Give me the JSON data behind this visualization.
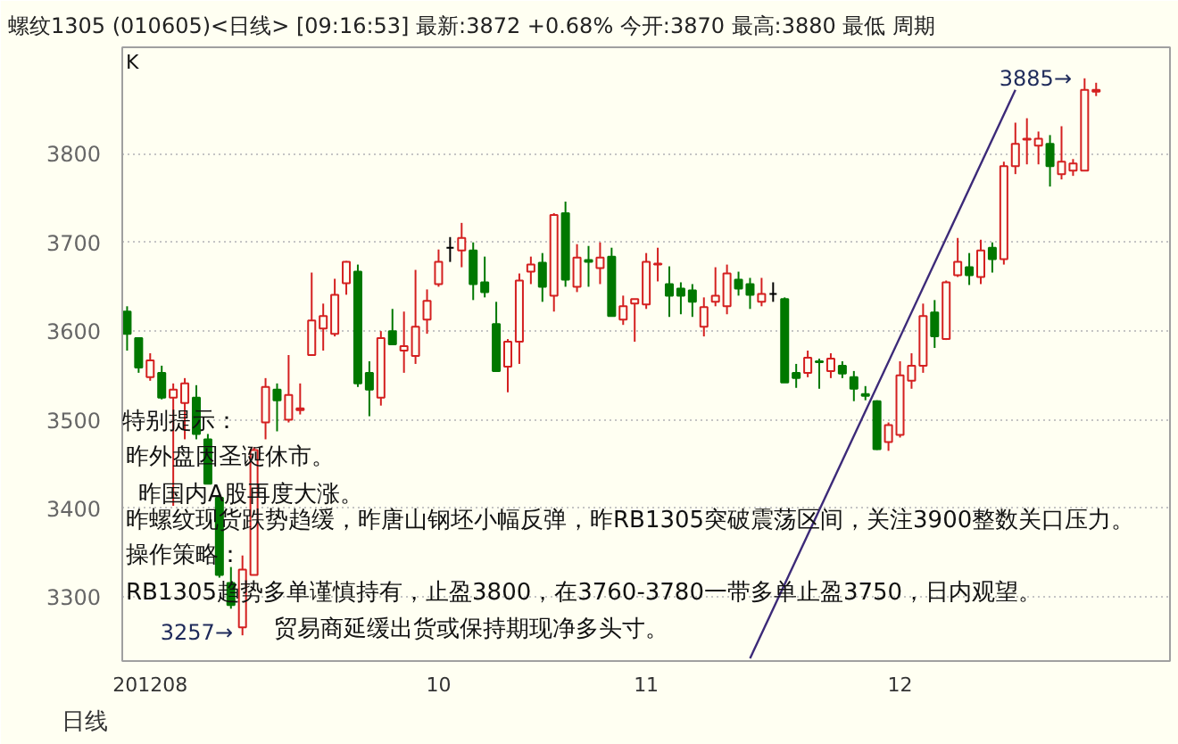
{
  "chart_data": {
    "type": "candlestick",
    "title": "螺纹1305 (010605)<日线>",
    "subtitle": "[09:16:53] 最新:3872 +0.68% 今开:3870 最高:3880 最低 周期",
    "categories": [
      null,
      null,
      "201208",
      null,
      null,
      null,
      null,
      null,
      null,
      null,
      null,
      null,
      null,
      null,
      null,
      null,
      null,
      null,
      null,
      null,
      null,
      null,
      null,
      null,
      null,
      null,
      null,
      "10",
      null,
      null,
      null,
      null,
      null,
      null,
      null,
      null,
      null,
      null,
      null,
      null,
      null,
      null,
      null,
      null,
      null,
      "11",
      null,
      null,
      null,
      null,
      null,
      null,
      null,
      null,
      null,
      null,
      null,
      null,
      null,
      null,
      null,
      null,
      null,
      null,
      null,
      null,
      null,
      "12",
      null,
      null,
      null,
      null,
      null,
      null,
      null,
      null,
      null,
      null,
      null,
      null,
      null,
      null,
      null,
      null,
      null
    ],
    "ohlc": [
      [
        3622,
        3628,
        3578,
        3597
      ],
      [
        3592,
        3592,
        3553,
        3559
      ],
      [
        3548,
        3575,
        3544,
        3567
      ],
      [
        3553,
        3561,
        3523,
        3525
      ],
      [
        3525,
        3541,
        3403,
        3534
      ],
      [
        3519,
        3547,
        3478,
        3541
      ],
      [
        3525,
        3539,
        3478,
        3484
      ],
      [
        3478,
        3484,
        3428,
        3428
      ],
      [
        3412,
        3416,
        3322,
        3325
      ],
      [
        3316,
        3334,
        3287,
        3291
      ],
      [
        3266,
        3347,
        3257,
        3331
      ],
      [
        3325,
        3469,
        3325,
        3466
      ],
      [
        3497,
        3547,
        3478,
        3537
      ],
      [
        3534,
        3541,
        3487,
        3522
      ],
      [
        3500,
        3573,
        3497,
        3528
      ],
      [
        3511,
        3541,
        3506,
        3513
      ],
      [
        3573,
        3666,
        3573,
        3612
      ],
      [
        3603,
        3631,
        3578,
        3617
      ],
      [
        3597,
        3659,
        3594,
        3641
      ],
      [
        3654,
        3679,
        3641,
        3678
      ],
      [
        3667,
        3675,
        3537,
        3541
      ],
      [
        3553,
        3566,
        3504,
        3534
      ],
      [
        3525,
        3600,
        3516,
        3592
      ],
      [
        3600,
        3625,
        3585,
        3585
      ],
      [
        3578,
        3622,
        3553,
        3583
      ],
      [
        3572,
        3669,
        3563,
        3605
      ],
      [
        3613,
        3647,
        3597,
        3634
      ],
      [
        3653,
        3692,
        3650,
        3678
      ],
      [
        3694,
        3706,
        3678,
        3694
      ],
      [
        3691,
        3722,
        3672,
        3705
      ],
      [
        3691,
        3700,
        3635,
        3653
      ],
      [
        3655,
        3684,
        3638,
        3644
      ],
      [
        3608,
        3633,
        3555,
        3555
      ],
      [
        3560,
        3591,
        3531,
        3588
      ],
      [
        3588,
        3665,
        3563,
        3657
      ],
      [
        3667,
        3684,
        3653,
        3675
      ],
      [
        3677,
        3688,
        3633,
        3650
      ],
      [
        3640,
        3733,
        3622,
        3731
      ],
      [
        3733,
        3746,
        3650,
        3658
      ],
      [
        3650,
        3698,
        3644,
        3683
      ],
      [
        3680,
        3696,
        3650,
        3678
      ],
      [
        3671,
        3700,
        3653,
        3683
      ],
      [
        3684,
        3694,
        3617,
        3617
      ],
      [
        3613,
        3640,
        3607,
        3628
      ],
      [
        3631,
        3636,
        3588,
        3636
      ],
      [
        3630,
        3688,
        3625,
        3678
      ],
      [
        3675,
        3694,
        3656,
        3676
      ],
      [
        3653,
        3673,
        3616,
        3640
      ],
      [
        3648,
        3655,
        3619,
        3640
      ],
      [
        3646,
        3653,
        3616,
        3633
      ],
      [
        3605,
        3638,
        3594,
        3627
      ],
      [
        3633,
        3672,
        3628,
        3640
      ],
      [
        3628,
        3675,
        3619,
        3665
      ],
      [
        3658,
        3667,
        3640,
        3648
      ],
      [
        3653,
        3660,
        3625,
        3641
      ],
      [
        3633,
        3660,
        3628,
        3642
      ],
      [
        3642,
        3655,
        3633,
        3642
      ],
      [
        3636,
        3638,
        3542,
        3542
      ],
      [
        3553,
        3563,
        3536,
        3547
      ],
      [
        3553,
        3578,
        3548,
        3570
      ],
      [
        3566,
        3569,
        3535,
        3565
      ],
      [
        3555,
        3575,
        3547,
        3569
      ],
      [
        3561,
        3566,
        3547,
        3552
      ],
      [
        3548,
        3555,
        3521,
        3535
      ],
      [
        3529,
        3538,
        3522,
        3527
      ],
      [
        3521,
        3522,
        3466,
        3467
      ],
      [
        3475,
        3497,
        3465,
        3494
      ],
      [
        3483,
        3566,
        3480,
        3550
      ],
      [
        3544,
        3575,
        3535,
        3561
      ],
      [
        3561,
        3631,
        3553,
        3617
      ],
      [
        3621,
        3635,
        3581,
        3594
      ],
      [
        3591,
        3657,
        3590,
        3655
      ],
      [
        3663,
        3705,
        3661,
        3678
      ],
      [
        3672,
        3688,
        3652,
        3663
      ],
      [
        3661,
        3703,
        3653,
        3691
      ],
      [
        3694,
        3700,
        3666,
        3681
      ],
      [
        3681,
        3791,
        3675,
        3786
      ],
      [
        3786,
        3835,
        3777,
        3811
      ],
      [
        3816,
        3840,
        3788,
        3817
      ],
      [
        3809,
        3825,
        3788,
        3817
      ],
      [
        3811,
        3821,
        3763,
        3786
      ],
      [
        3777,
        3831,
        3771,
        3791
      ],
      [
        3781,
        3794,
        3775,
        3789
      ],
      [
        3781,
        3885,
        3781,
        3872
      ],
      [
        3870,
        3880,
        3865,
        3872
      ]
    ],
    "colors": [
      "#007800",
      "#007800",
      "#d42020",
      "#007800",
      "#d42020",
      "#d42020",
      "#007800",
      "#007800",
      "#007800",
      "#007800",
      "#d42020",
      "#d42020",
      "#d42020",
      "#007800",
      "#d42020",
      "#d42020",
      "#d42020",
      "#d42020",
      "#d42020",
      "#d42020",
      "#007800",
      "#007800",
      "#d42020",
      "#007800",
      "#d42020",
      "#d42020",
      "#d42020",
      "#d42020",
      "#000000",
      "#d42020",
      "#007800",
      "#007800",
      "#007800",
      "#d42020",
      "#d42020",
      "#d42020",
      "#007800",
      "#d42020",
      "#007800",
      "#d42020",
      "#007800",
      "#d42020",
      "#007800",
      "#d42020",
      "#d42020",
      "#d42020",
      "#d42020",
      "#007800",
      "#007800",
      "#007800",
      "#d42020",
      "#d42020",
      "#d42020",
      "#007800",
      "#007800",
      "#d42020",
      "#000000",
      "#007800",
      "#007800",
      "#d42020",
      "#007800",
      "#d42020",
      "#007800",
      "#007800",
      "#007800",
      "#007800",
      "#d42020",
      "#d42020",
      "#d42020",
      "#d42020",
      "#007800",
      "#d42020",
      "#d42020",
      "#007800",
      "#d42020",
      "#007800",
      "#d42020",
      "#d42020",
      "#d42020",
      "#d42020",
      "#007800",
      "#d42020",
      "#d42020",
      "#d42020",
      "#d42020"
    ],
    "series": [
      {
        "type": "line",
        "color": "#3c2a78",
        "values": [
          null,
          null,
          null,
          null,
          null,
          null,
          null,
          null,
          null,
          null,
          null,
          null,
          null,
          null,
          null,
          null,
          null,
          null,
          null,
          null,
          null,
          null,
          null,
          null,
          null,
          null,
          null,
          null,
          null,
          null,
          null,
          null,
          null,
          null,
          null,
          null,
          null,
          null,
          null,
          null,
          null,
          null,
          null,
          null,
          null,
          null,
          null,
          null,
          null,
          null,
          null,
          null,
          null,
          null,
          3231,
          null,
          null,
          null,
          null,
          null,
          null,
          null,
          null,
          null,
          null,
          null,
          null,
          null,
          null,
          null,
          null,
          null,
          null,
          null,
          null,
          null,
          null,
          3872,
          null,
          null,
          null,
          null,
          null,
          null,
          null
        ]
      }
    ],
    "ylim": [
      3228,
      3920
    ],
    "yticks": [
      3300,
      3400,
      3500,
      3600,
      3700,
      3800
    ],
    "grid": "y",
    "annotations": [
      "K",
      "日线",
      "特别提示：",
      "昨外盘因圣诞休市。",
      "昨国内A股再度大涨。",
      "昨螺纹现货跌势趋缓，昨唐山钢坯小幅反弹，昨RB1305突破震荡区间，关注3900整数关口压力。",
      "操作策略：",
      "RB1305趋势多单谨慎持有，止盈3800，在3760-3780一带多单止盈3750，日内观望。",
      "贸易商延缓出货或保持期现净多头寸。",
      "3257→",
      "3885→"
    ]
  }
}
